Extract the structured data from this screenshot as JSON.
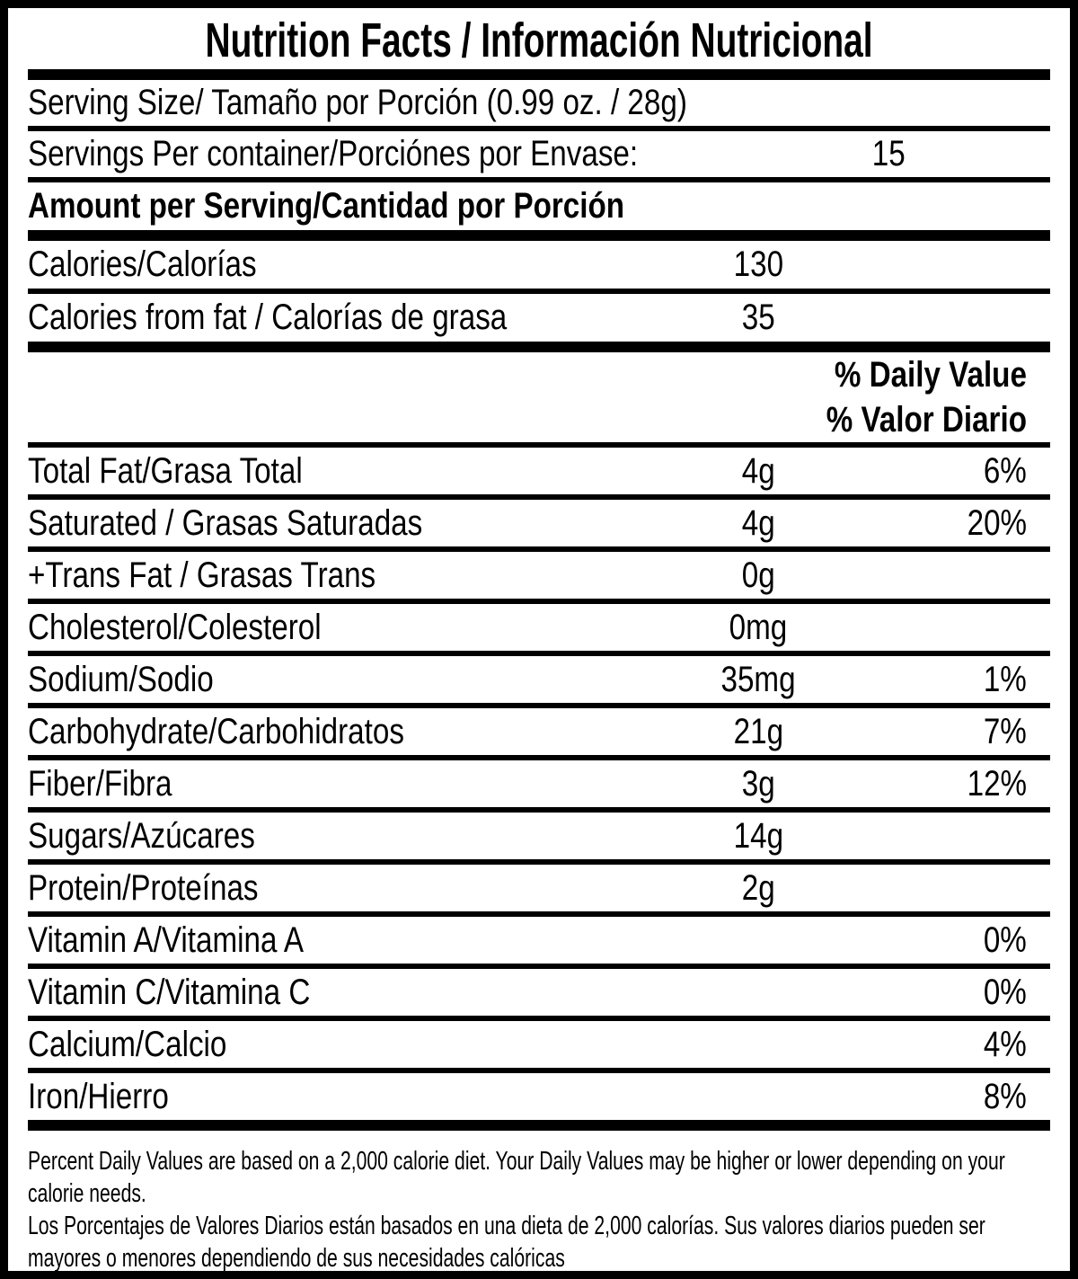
{
  "title": "Nutrition Facts / Información Nutricional",
  "serving": {
    "serving_size_label": "Serving Size/ Tamaño por Porción  (0.99 oz. / 28g)",
    "servings_per_container_label": "Servings Per container/Porciónes por Envase:",
    "servings_per_container_value": "15",
    "amount_per_serving_label": "Amount per Serving/Cantidad por Porción"
  },
  "calories": {
    "label": "Calories/Calorías",
    "value": "130",
    "from_fat_label": "Calories from fat / Calorías de grasa",
    "from_fat_value": "35"
  },
  "daily_value_header": {
    "line1": "% Daily Value",
    "line2": "% Valor Diario"
  },
  "nutrients": [
    {
      "label": "Total Fat/Grasa Total",
      "amount": "4g",
      "dv": "6%"
    },
    {
      "label": "Saturated / Grasas Saturadas",
      "amount": "4g",
      "dv": "20%"
    },
    {
      "label": "+Trans Fat / Grasas Trans",
      "amount": "0g",
      "dv": ""
    },
    {
      "label": "Cholesterol/Colesterol",
      "amount": "0mg",
      "dv": ""
    },
    {
      "label": "Sodium/Sodio",
      "amount": "35mg",
      "dv": "1%"
    },
    {
      "label": "Carbohydrate/Carbohidratos",
      "amount": "21g",
      "dv": "7%"
    },
    {
      "label": "Fiber/Fibra",
      "amount": "3g",
      "dv": "12%"
    },
    {
      "label": "Sugars/Azúcares",
      "amount": "14g",
      "dv": ""
    },
    {
      "label": "Protein/Proteínas",
      "amount": "2g",
      "dv": ""
    },
    {
      "label": "Vitamin A/Vitamina A",
      "amount": "",
      "dv": "0%"
    },
    {
      "label": "Vitamin C/Vitamina C",
      "amount": "",
      "dv": "0%"
    },
    {
      "label": "Calcium/Calcio",
      "amount": "",
      "dv": "4%"
    },
    {
      "label": "Iron/Hierro",
      "amount": "",
      "dv": "8%"
    }
  ],
  "footnote": {
    "english": "Percent Daily Values are based on a 2,000 calorie diet. Your Daily Values may be higher or lower depending on your\ncalorie needs.",
    "spanish": "Los Porcentajes de Valores Diarios están basados en una dieta de 2,000 calorías. Sus valores diarios pueden ser\nmayores o menores dependiendo de sus necesidades calóricas"
  },
  "colors": {
    "text": "#000000",
    "background": "#ffffff"
  }
}
